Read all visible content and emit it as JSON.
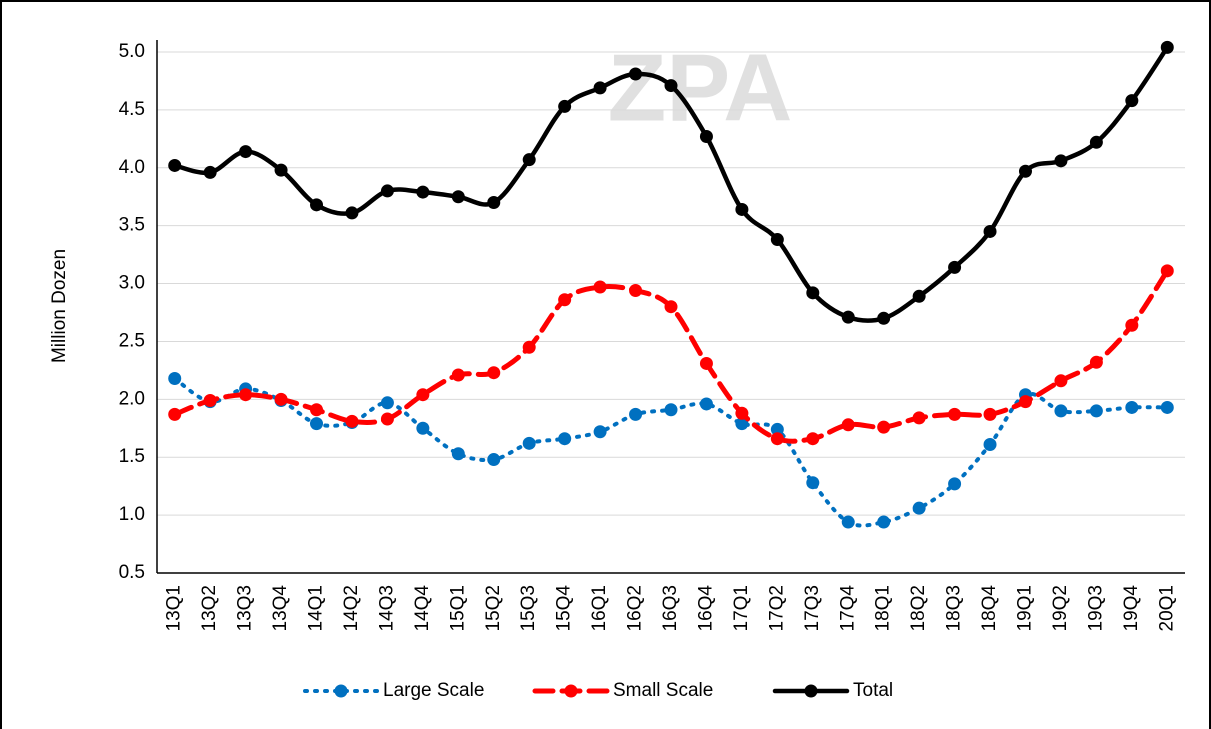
{
  "chart_data": {
    "type": "line",
    "y_label": "Million Dozen",
    "watermark": "ZPA",
    "categories": [
      "13Q1",
      "13Q2",
      "13Q3",
      "13Q4",
      "14Q1",
      "14Q2",
      "14Q3",
      "14Q4",
      "15Q1",
      "15Q2",
      "15Q3",
      "15Q4",
      "16Q1",
      "16Q2",
      "16Q3",
      "16Q4",
      "17Q1",
      "17Q2",
      "17Q3",
      "17Q4",
      "18Q1",
      "18Q2",
      "18Q3",
      "18Q4",
      "19Q1",
      "19Q2",
      "19Q3",
      "19Q4",
      "20Q1"
    ],
    "series": [
      {
        "name": "Large Scale",
        "color": "#0070c0",
        "style": "dotted",
        "values": [
          2.18,
          1.98,
          2.09,
          1.99,
          1.79,
          1.8,
          1.97,
          1.75,
          1.53,
          1.48,
          1.62,
          1.66,
          1.72,
          1.87,
          1.91,
          1.96,
          1.79,
          1.74,
          1.28,
          0.94,
          0.94,
          1.06,
          1.27,
          1.61,
          2.04,
          1.9,
          1.9,
          1.93,
          1.93
        ]
      },
      {
        "name": "Small Scale",
        "color": "#ff0000",
        "style": "dashed",
        "values": [
          1.87,
          1.99,
          2.04,
          2.0,
          1.91,
          1.81,
          1.83,
          2.04,
          2.21,
          2.23,
          2.45,
          2.86,
          2.97,
          2.94,
          2.8,
          2.31,
          1.88,
          1.66,
          1.66,
          1.78,
          1.76,
          1.84,
          1.87,
          1.87,
          1.98,
          2.16,
          2.32,
          2.64,
          3.11
        ]
      },
      {
        "name": "Total",
        "color": "#000000",
        "style": "solid",
        "values": [
          4.02,
          3.96,
          4.14,
          3.98,
          3.68,
          3.61,
          3.8,
          3.79,
          3.75,
          3.7,
          4.07,
          4.53,
          4.69,
          4.81,
          4.71,
          4.27,
          3.64,
          3.38,
          2.92,
          2.71,
          2.7,
          2.89,
          3.14,
          3.45,
          3.97,
          4.06,
          4.22,
          4.58,
          5.04
        ]
      }
    ],
    "ylim": [
      0.5,
      5.0
    ],
    "yticks": [
      0.5,
      {
        "value": 1,
        "label": "1.0"
      },
      1.5,
      {
        "value": 2,
        "label": "2.0"
      },
      2.5,
      {
        "value": 3,
        "label": "3.0"
      },
      3.5,
      {
        "value": 4,
        "label": "4.0"
      },
      4.5,
      {
        "value": 5,
        "label": "5.0"
      }
    ],
    "grid": true,
    "legend": "bottom"
  }
}
